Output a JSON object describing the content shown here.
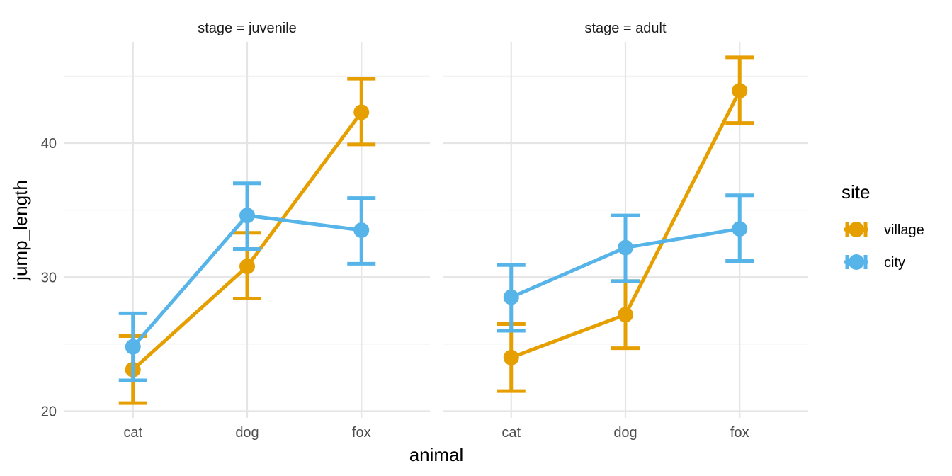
{
  "chart_data": {
    "type": "line",
    "facet_label": "stage",
    "facets": [
      {
        "label": "stage = juvenile",
        "categories": [
          "cat",
          "dog",
          "fox"
        ],
        "series": [
          {
            "name": "village",
            "values": [
              23.1,
              30.8,
              42.3
            ],
            "lower": [
              20.6,
              28.4,
              39.9
            ],
            "upper": [
              25.6,
              33.3,
              44.8
            ]
          },
          {
            "name": "city",
            "values": [
              24.8,
              34.6,
              33.5
            ],
            "lower": [
              22.3,
              32.1,
              31.0
            ],
            "upper": [
              27.3,
              37.0,
              35.9
            ]
          }
        ]
      },
      {
        "label": "stage = adult",
        "categories": [
          "cat",
          "dog",
          "fox"
        ],
        "series": [
          {
            "name": "village",
            "values": [
              24.0,
              27.2,
              43.9
            ],
            "lower": [
              21.5,
              24.7,
              41.5
            ],
            "upper": [
              26.5,
              29.7,
              46.4
            ]
          },
          {
            "name": "city",
            "values": [
              28.5,
              32.2,
              33.6
            ],
            "lower": [
              26.0,
              29.7,
              31.2
            ],
            "upper": [
              30.9,
              34.6,
              36.1
            ]
          }
        ]
      }
    ],
    "xlabel": "animal",
    "ylabel": "jump_length",
    "ylim": [
      19.5,
      47.5
    ],
    "yticks": [
      20,
      30,
      40
    ],
    "grid": true,
    "legend": {
      "title": "site",
      "placement": "right",
      "entries": [
        {
          "name": "village",
          "color": "#E69F00"
        },
        {
          "name": "city",
          "color": "#56B4E9"
        }
      ]
    },
    "colors": {
      "village": "#E69F00",
      "city": "#56B4E9"
    }
  }
}
